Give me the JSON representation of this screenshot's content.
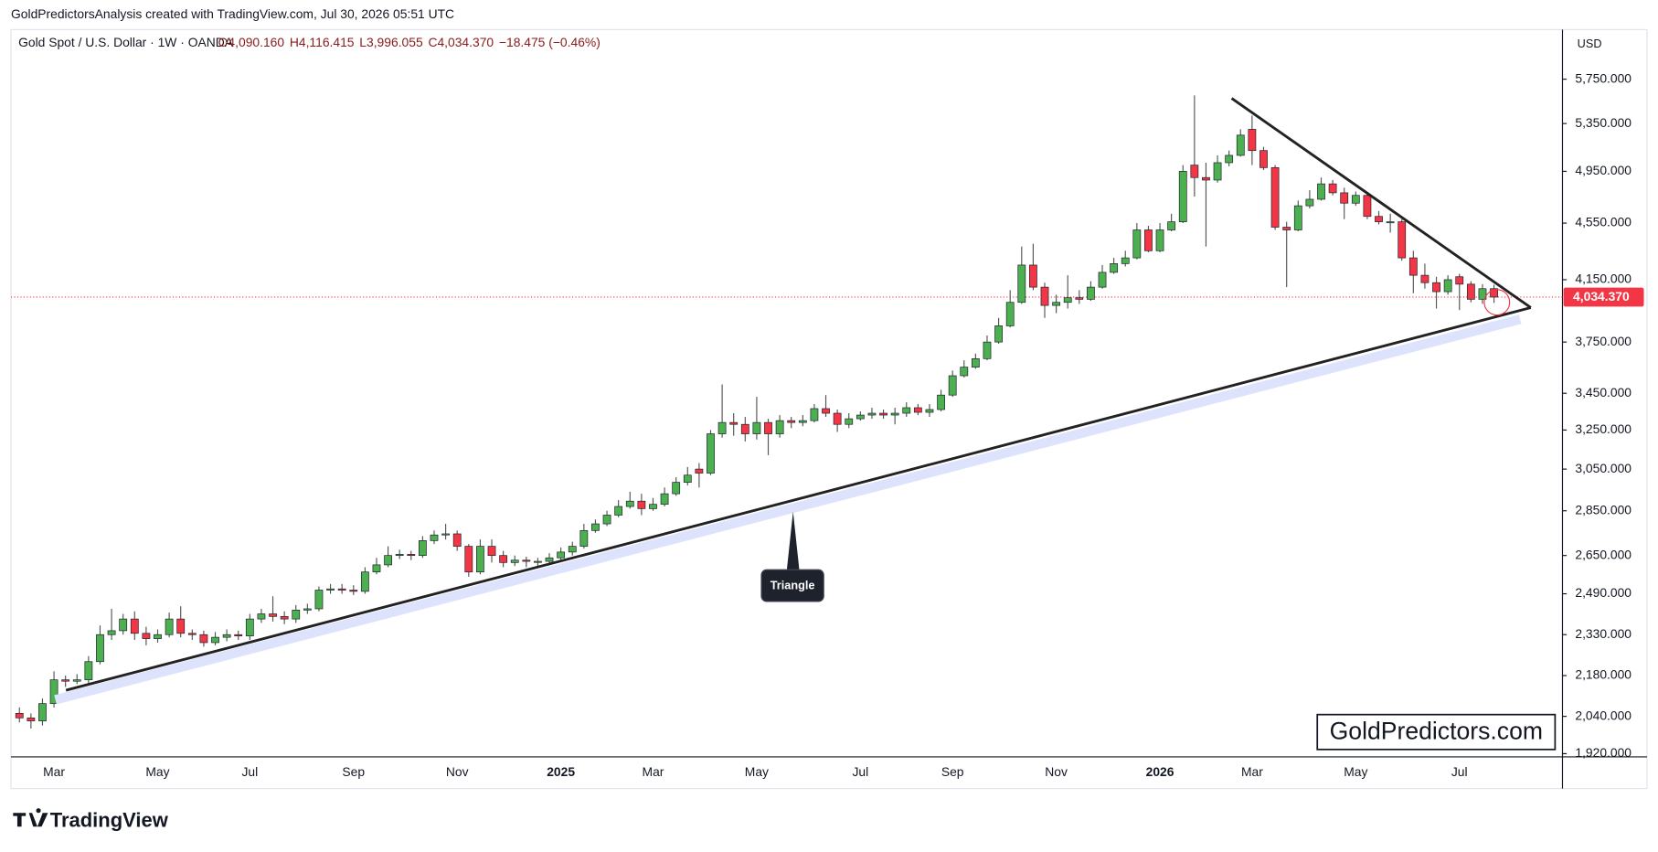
{
  "page": {
    "attribution": "GoldPredictorsAnalysis created with TradingView.com, Jul 30, 2026 05:51 UTC",
    "logo": "TradingView",
    "watermark": "GoldPredictors.com",
    "currency": "USD"
  },
  "chart_data": {
    "type": "candlestick",
    "title": "Gold Spot / U.S. Dollar · 1W · OANDA",
    "legend_values": [
      "O4,090.160",
      "H4,116.415",
      "L3,996.055",
      "C4,034.370",
      "−18.475 (−0.46%)"
    ],
    "annotation": "Triangle",
    "up_color": "#4caf50",
    "down_color": "#f23645",
    "wick_color": "#555555",
    "scale": "log",
    "grid": false,
    "last_price": {
      "value": 4034.37,
      "label": "4,034.370"
    },
    "ylim": [
      1910,
      6233
    ],
    "yticks": [
      {
        "value": 5750,
        "label": "5,750.000"
      },
      {
        "value": 5350,
        "label": "5,350.000"
      },
      {
        "value": 4950,
        "label": "4,950.000"
      },
      {
        "value": 4550,
        "label": "4,550.000"
      },
      {
        "value": 4150,
        "label": "4,150.000"
      },
      {
        "value": 3750,
        "label": "3,750.000"
      },
      {
        "value": 3450,
        "label": "3,450.000"
      },
      {
        "value": 3250,
        "label": "3,250.000"
      },
      {
        "value": 3050,
        "label": "3,050.000"
      },
      {
        "value": 2850,
        "label": "2,850.000"
      },
      {
        "value": 2650,
        "label": "2,650.000"
      },
      {
        "value": 2490,
        "label": "2,490.000"
      },
      {
        "value": 2330,
        "label": "2,330.000"
      },
      {
        "value": 2180,
        "label": "2,180.000"
      },
      {
        "value": 2040,
        "label": "2,040.000"
      },
      {
        "value": 1920,
        "label": "1,920.000"
      }
    ],
    "categories": [
      null,
      null,
      null,
      "Mar",
      null,
      null,
      null,
      null,
      null,
      null,
      null,
      null,
      "May",
      null,
      null,
      null,
      null,
      null,
      null,
      null,
      "Jul",
      null,
      null,
      null,
      null,
      null,
      null,
      null,
      null,
      "Sep",
      null,
      null,
      null,
      null,
      null,
      null,
      null,
      null,
      "Nov",
      null,
      null,
      null,
      null,
      null,
      null,
      null,
      null,
      "2025",
      null,
      null,
      null,
      null,
      null,
      null,
      null,
      "Mar",
      null,
      null,
      null,
      null,
      null,
      null,
      null,
      null,
      "May",
      null,
      null,
      null,
      null,
      null,
      null,
      null,
      null,
      "Jul",
      null,
      null,
      null,
      null,
      null,
      null,
      null,
      "Sep",
      null,
      null,
      null,
      null,
      null,
      null,
      null,
      null,
      "Nov",
      null,
      null,
      null,
      null,
      null,
      null,
      null,
      null,
      "2026",
      null,
      null,
      null,
      null,
      null,
      null,
      null,
      "Mar",
      null,
      null,
      null,
      null,
      null,
      null,
      null,
      null,
      "May",
      null,
      null,
      null,
      null,
      null,
      null,
      null,
      null,
      "Jul",
      null,
      null,
      null
    ],
    "open": [
      2050,
      2035,
      2025,
      2083,
      2165,
      2160,
      2165,
      2230,
      2330,
      2345,
      2390,
      2335,
      2315,
      2330,
      2390,
      2335,
      2330,
      2300,
      2320,
      2330,
      2325,
      2390,
      2410,
      2400,
      2390,
      2425,
      2430,
      2505,
      2510,
      2505,
      2500,
      2580,
      2610,
      2650,
      2655,
      2650,
      2715,
      2740,
      2745,
      2690,
      2580,
      2690,
      2650,
      2620,
      2630,
      2625,
      2625,
      2640,
      2665,
      2690,
      2760,
      2790,
      2830,
      2870,
      2895,
      2860,
      2880,
      2930,
      2985,
      3050,
      3030,
      3230,
      3290,
      3280,
      3230,
      3290,
      3230,
      3300,
      3290,
      3300,
      3365,
      3340,
      3280,
      3310,
      3330,
      3340,
      3330,
      3340,
      3370,
      3345,
      3360,
      3440,
      3550,
      3600,
      3650,
      3750,
      3850,
      4000,
      4250,
      4100,
      3980,
      4000,
      4030,
      4020,
      4100,
      4200,
      4260,
      4300,
      4500,
      4350,
      4500,
      4560,
      5000,
      4900,
      4880,
      5020,
      5080,
      5300,
      5120,
      4980,
      4520,
      4500,
      4680,
      4730,
      4850,
      4780,
      4700,
      4760,
      4600,
      4560,
      4560,
      4300,
      4180,
      4130,
      4070,
      4170,
      4120,
      4020,
      4090.16
    ],
    "high": [
      2070,
      2050,
      2100,
      2195,
      2180,
      2185,
      2250,
      2365,
      2430,
      2410,
      2420,
      2360,
      2350,
      2415,
      2440,
      2350,
      2345,
      2340,
      2350,
      2345,
      2410,
      2430,
      2480,
      2420,
      2445,
      2450,
      2520,
      2530,
      2530,
      2525,
      2600,
      2640,
      2690,
      2675,
      2670,
      2735,
      2760,
      2790,
      2760,
      2700,
      2720,
      2720,
      2670,
      2650,
      2645,
      2640,
      2660,
      2685,
      2710,
      2790,
      2810,
      2850,
      2900,
      2940,
      2930,
      2910,
      2960,
      3010,
      3060,
      3080,
      3250,
      3500,
      3340,
      3320,
      3430,
      3310,
      3330,
      3320,
      3330,
      3390,
      3440,
      3360,
      3340,
      3350,
      3370,
      3360,
      3370,
      3400,
      3390,
      3390,
      3470,
      3580,
      3640,
      3680,
      3790,
      3900,
      4080,
      4380,
      4400,
      4130,
      4050,
      4180,
      4080,
      4140,
      4250,
      4300,
      4350,
      4550,
      4530,
      4550,
      4620,
      5000,
      5600,
      5020,
      5080,
      5120,
      5300,
      5420,
      5150,
      5000,
      4560,
      4720,
      4800,
      4900,
      4880,
      4820,
      4790,
      4780,
      4640,
      4620,
      4580,
      4350,
      4260,
      4170,
      4180,
      4190,
      4140,
      4120,
      4116.415
    ],
    "low": [
      2020,
      2000,
      2010,
      2070,
      2140,
      2150,
      2150,
      2220,
      2310,
      2330,
      2310,
      2290,
      2300,
      2320,
      2320,
      2310,
      2285,
      2290,
      2305,
      2310,
      2310,
      2375,
      2380,
      2370,
      2375,
      2410,
      2420,
      2490,
      2490,
      2485,
      2490,
      2570,
      2600,
      2635,
      2630,
      2640,
      2700,
      2720,
      2670,
      2560,
      2570,
      2620,
      2600,
      2605,
      2600,
      2605,
      2610,
      2630,
      2650,
      2680,
      2750,
      2780,
      2820,
      2860,
      2830,
      2850,
      2870,
      2920,
      2970,
      2960,
      3020,
      3210,
      3220,
      3190,
      3200,
      3120,
      3210,
      3260,
      3270,
      3290,
      3320,
      3240,
      3260,
      3300,
      3310,
      3310,
      3280,
      3320,
      3330,
      3320,
      3350,
      3430,
      3540,
      3590,
      3640,
      3740,
      3840,
      3990,
      4080,
      3900,
      3930,
      3960,
      3990,
      4010,
      4090,
      4190,
      4240,
      4290,
      4340,
      4340,
      4490,
      4550,
      4750,
      4380,
      4860,
      4990,
      5070,
      5000,
      4960,
      4500,
      4100,
      4490,
      4660,
      4720,
      4760,
      4580,
      4680,
      4580,
      4540,
      4480,
      4280,
      4060,
      4090,
      3960,
      4050,
      3950,
      4000,
      3990,
      3996.055
    ],
    "close": [
      2035,
      2025,
      2083,
      2165,
      2160,
      2165,
      2230,
      2330,
      2345,
      2390,
      2335,
      2315,
      2330,
      2390,
      2335,
      2330,
      2300,
      2320,
      2330,
      2325,
      2390,
      2410,
      2400,
      2390,
      2425,
      2430,
      2505,
      2510,
      2505,
      2500,
      2580,
      2610,
      2650,
      2655,
      2650,
      2715,
      2740,
      2745,
      2690,
      2580,
      2690,
      2650,
      2620,
      2630,
      2625,
      2625,
      2640,
      2665,
      2690,
      2760,
      2790,
      2830,
      2870,
      2895,
      2860,
      2880,
      2930,
      2985,
      3020,
      3030,
      3230,
      3290,
      3280,
      3230,
      3290,
      3230,
      3300,
      3290,
      3300,
      3365,
      3340,
      3280,
      3310,
      3330,
      3340,
      3330,
      3340,
      3370,
      3345,
      3360,
      3440,
      3550,
      3600,
      3650,
      3750,
      3850,
      4000,
      4250,
      4100,
      3980,
      4000,
      4030,
      4020,
      4100,
      4200,
      4260,
      4300,
      4500,
      4350,
      4500,
      4560,
      4950,
      4900,
      4880,
      5020,
      5080,
      5250,
      5120,
      4980,
      4520,
      4500,
      4680,
      4730,
      4850,
      4780,
      4700,
      4760,
      4600,
      4560,
      4560,
      4300,
      4180,
      4130,
      4070,
      4150,
      4120,
      4020,
      4090,
      4034.37
    ]
  }
}
